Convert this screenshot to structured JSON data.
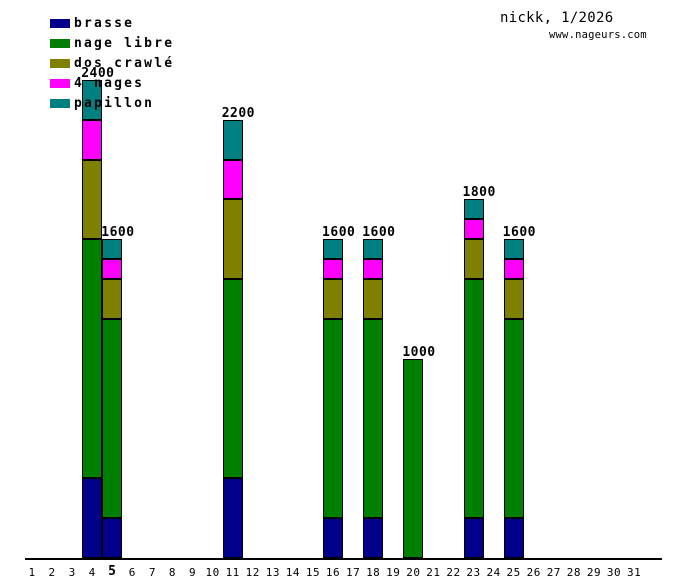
{
  "header": {
    "title": "nickk, 1/2026",
    "website": "www.nageurs.com"
  },
  "legend": [
    {
      "key": "brasse",
      "label": "brasse",
      "color": "#00008B"
    },
    {
      "key": "nage_libre",
      "label": "nage libre",
      "color": "#008000"
    },
    {
      "key": "dos_craule",
      "label": "dos crawlé",
      "color": "#808000"
    },
    {
      "key": "quatre_nages",
      "label": "4 nages",
      "color": "#FF00FF"
    },
    {
      "key": "papillon",
      "label": "papillon",
      "color": "#008080"
    }
  ],
  "chart_data": {
    "type": "bar",
    "stacked": true,
    "title": "nickk, 1/2026",
    "xlabel": "",
    "ylabel": "",
    "grid": false,
    "legend_position": "top-left",
    "x_categories": [
      "1",
      "2",
      "3",
      "4",
      "5",
      "6",
      "7",
      "8",
      "9",
      "10",
      "11",
      "12",
      "13",
      "14",
      "15",
      "16",
      "17",
      "18",
      "19",
      "20",
      "21",
      "22",
      "23",
      "24",
      "25",
      "26",
      "27",
      "28",
      "29",
      "30",
      "31"
    ],
    "bold_x_tick": "5",
    "stack_order": [
      "brasse",
      "nage_libre",
      "dos_craule",
      "quatre_nages",
      "papillon"
    ],
    "value_labels_shown": true,
    "bars": [
      {
        "day": "4",
        "total": 2400,
        "segments": {
          "brasse": 400,
          "nage_libre": 1200,
          "dos_craule": 400,
          "quatre_nages": 200,
          "papillon": 200
        }
      },
      {
        "day": "5",
        "total": 1600,
        "segments": {
          "brasse": 200,
          "nage_libre": 1000,
          "dos_craule": 200,
          "quatre_nages": 100,
          "papillon": 100
        }
      },
      {
        "day": "11",
        "total": 2200,
        "segments": {
          "brasse": 400,
          "nage_libre": 1000,
          "dos_craule": 400,
          "quatre_nages": 200,
          "papillon": 200
        }
      },
      {
        "day": "16",
        "total": 1600,
        "segments": {
          "brasse": 200,
          "nage_libre": 1000,
          "dos_craule": 200,
          "quatre_nages": 100,
          "papillon": 100
        }
      },
      {
        "day": "18",
        "total": 1600,
        "segments": {
          "brasse": 200,
          "nage_libre": 1000,
          "dos_craule": 200,
          "quatre_nages": 100,
          "papillon": 100
        }
      },
      {
        "day": "20",
        "total": 1000,
        "segments": {
          "brasse": 0,
          "nage_libre": 1000,
          "dos_craule": 0,
          "quatre_nages": 0,
          "papillon": 0
        }
      },
      {
        "day": "23",
        "total": 1800,
        "segments": {
          "brasse": 200,
          "nage_libre": 1200,
          "dos_craule": 200,
          "quatre_nages": 100,
          "papillon": 100
        }
      },
      {
        "day": "25",
        "total": 1600,
        "segments": {
          "brasse": 200,
          "nage_libre": 1000,
          "dos_craule": 200,
          "quatre_nages": 100,
          "papillon": 100
        }
      }
    ]
  }
}
